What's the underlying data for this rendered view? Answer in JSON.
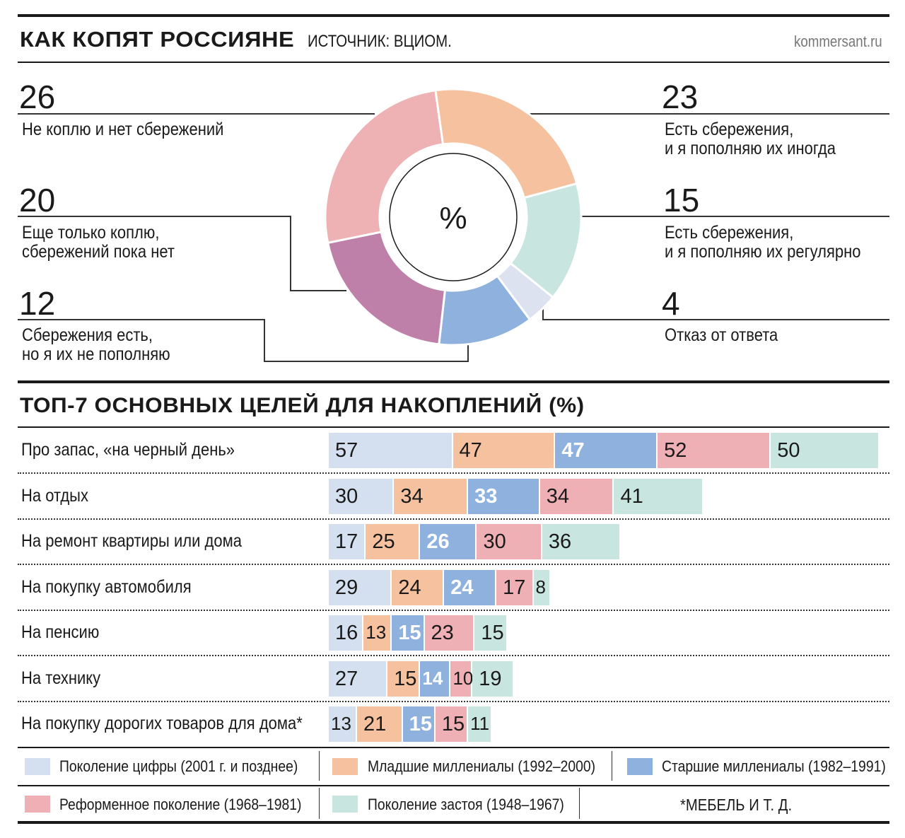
{
  "header": {
    "title": "КАК КОПЯТ РОССИЯНЕ",
    "source": "ИСТОЧНИК: ВЦИОМ.",
    "site": "kommersant.ru"
  },
  "chart_data": [
    {
      "type": "pie",
      "center_label": "%",
      "slices": [
        {
          "value": 23,
          "label": "Есть сбережения, и я пополняю их иногда",
          "label_lines": [
            "Есть сбережения,",
            "и я пополняю их иногда"
          ],
          "color": "#f6c19f"
        },
        {
          "value": 15,
          "label": "Есть сбережения, и я пополняю их регулярно",
          "label_lines": [
            "Есть сбережения,",
            "и я пополняю их регулярно"
          ],
          "color": "#c8e5e0"
        },
        {
          "value": 4,
          "label": "Отказ от ответа",
          "label_lines": [
            "Отказ от ответа"
          ],
          "color": "#dde2f1"
        },
        {
          "value": 12,
          "label": "Сбережения есть, но я их не пополняю",
          "label_lines": [
            "Сбережения есть,",
            "но я их не пополняю"
          ],
          "color": "#8fb1de"
        },
        {
          "value": 20,
          "label": "Еще только коплю, сбережений пока нет",
          "label_lines": [
            "Еще только коплю,",
            "сбережений пока нет"
          ],
          "color": "#be80a9"
        },
        {
          "value": 26,
          "label": "Не коплю и нет сбережений",
          "label_lines": [
            "Не коплю и нет сбережений"
          ],
          "color": "#eeb2b5"
        }
      ]
    },
    {
      "type": "bar",
      "orientation": "horizontal",
      "stacked": true,
      "title": "ТОП-7 ОСНОВНЫХ ЦЕЛЕЙ ДЛЯ НАКОПЛЕНИЙ (%)",
      "categories": [
        "Про запас, «на черный день»",
        "На отдых",
        "На ремонт квартиры или дома",
        "На покупку автомобиля",
        "На пенсию",
        "На технику",
        "На покупку дорогих товаров для дома*"
      ],
      "series": [
        {
          "name": "Поколение цифры (2001 г. и позднее)",
          "color": "#d4e0ef",
          "values": [
            57,
            30,
            17,
            29,
            16,
            27,
            13
          ]
        },
        {
          "name": "Младшие миллениалы (1992–2000)",
          "color": "#f6c19f",
          "values": [
            47,
            34,
            25,
            24,
            13,
            15,
            21
          ]
        },
        {
          "name": "Старшие миллениалы (1982–1991)",
          "color": "#8fb1de",
          "values": [
            47,
            33,
            26,
            24,
            15,
            14,
            15
          ]
        },
        {
          "name": "Реформенное поколение (1968–1981)",
          "color": "#efb0b5",
          "values": [
            52,
            34,
            30,
            17,
            23,
            10,
            15
          ]
        },
        {
          "name": "Поколение застоя (1948–1967)",
          "color": "#c8e5e0",
          "values": [
            50,
            41,
            36,
            8,
            15,
            19,
            11
          ]
        }
      ],
      "legend_position": "bottom",
      "footnote": "*МЕБЕЛЬ И Т. Д."
    }
  ]
}
